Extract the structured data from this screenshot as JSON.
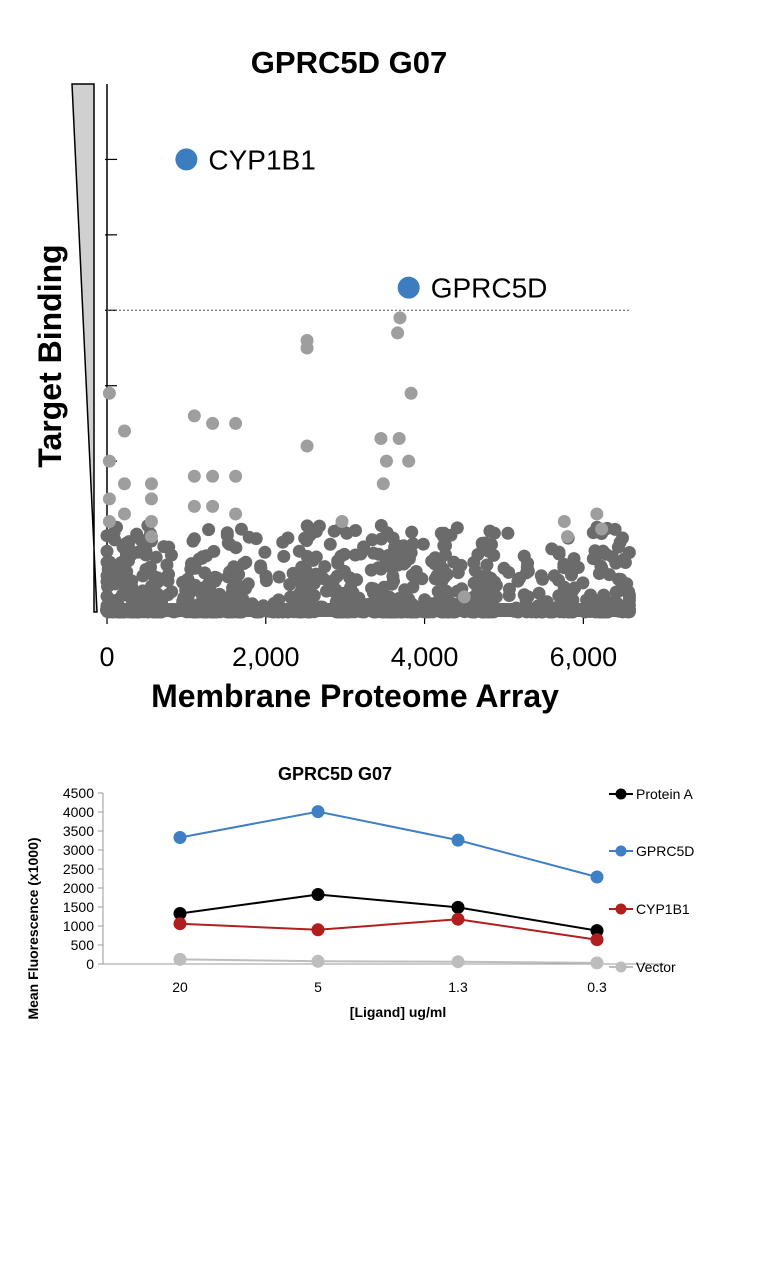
{
  "chart_data": [
    {
      "type": "scatter",
      "title": "GPRC5D G07",
      "xlabel": "Membrane Proteome Array",
      "ylabel": "Target Binding",
      "xlim": [
        0,
        6600
      ],
      "xticks": [
        "0",
        "2,000",
        "4,000",
        "6,000"
      ],
      "xtick_values": [
        0,
        2000,
        4000,
        6000
      ],
      "ylim": [
        0,
        7
      ],
      "y_axis_numeric_labels": false,
      "threshold_line": 4,
      "colors": {
        "background_points": "#9e9e9e",
        "dense_points": "#6b6b6b",
        "highlight": "#3b7dbf"
      },
      "highlights": [
        {
          "name": "CYP1B1",
          "x": 1000,
          "y": 6
        },
        {
          "name": "GPRC5D",
          "x": 3800,
          "y": 4.3
        }
      ],
      "outliers": [
        {
          "x": 30,
          "y": 2.9
        },
        {
          "x": 30,
          "y": 2.0
        },
        {
          "x": 30,
          "y": 1.5
        },
        {
          "x": 30,
          "y": 1.2
        },
        {
          "x": 220,
          "y": 2.4
        },
        {
          "x": 220,
          "y": 1.7
        },
        {
          "x": 220,
          "y": 1.3
        },
        {
          "x": 560,
          "y": 1.7
        },
        {
          "x": 560,
          "y": 1.5
        },
        {
          "x": 560,
          "y": 1.2
        },
        {
          "x": 560,
          "y": 1.0
        },
        {
          "x": 1100,
          "y": 2.6
        },
        {
          "x": 1100,
          "y": 1.8
        },
        {
          "x": 1100,
          "y": 1.4
        },
        {
          "x": 1330,
          "y": 2.5
        },
        {
          "x": 1330,
          "y": 1.8
        },
        {
          "x": 1330,
          "y": 1.4
        },
        {
          "x": 1620,
          "y": 2.5
        },
        {
          "x": 1620,
          "y": 1.8
        },
        {
          "x": 1620,
          "y": 1.3
        },
        {
          "x": 2520,
          "y": 3.6
        },
        {
          "x": 2520,
          "y": 3.5
        },
        {
          "x": 2520,
          "y": 2.2
        },
        {
          "x": 2960,
          "y": 1.2
        },
        {
          "x": 3450,
          "y": 2.3
        },
        {
          "x": 3520,
          "y": 2.0
        },
        {
          "x": 3480,
          "y": 1.7
        },
        {
          "x": 3690,
          "y": 3.9
        },
        {
          "x": 3660,
          "y": 3.7
        },
        {
          "x": 3680,
          "y": 2.3
        },
        {
          "x": 3830,
          "y": 2.9
        },
        {
          "x": 3800,
          "y": 2.0
        },
        {
          "x": 4500,
          "y": 0.2
        },
        {
          "x": 5760,
          "y": 1.2
        },
        {
          "x": 5800,
          "y": 1.0
        },
        {
          "x": 6170,
          "y": 1.3
        },
        {
          "x": 6230,
          "y": 1.1
        }
      ]
    },
    {
      "type": "line",
      "title": "GPRC5D G07",
      "xlabel": "[Ligand] ug/ml",
      "ylabel": "Mean Fluorescence (x1000)",
      "categories": [
        "20",
        "5",
        "1.3",
        "0.3"
      ],
      "ylim": [
        0,
        4500
      ],
      "yticks": [
        0,
        500,
        1000,
        1500,
        2000,
        2500,
        3000,
        3500,
        4000,
        4500
      ],
      "legend_position": "right",
      "series": [
        {
          "name": "Protein A",
          "color": "#000000",
          "values": [
            1330,
            1830,
            1490,
            880
          ]
        },
        {
          "name": "GPRC5D",
          "color": "#3f7fc3",
          "values": [
            3330,
            4010,
            3260,
            2290
          ]
        },
        {
          "name": "CYP1B1",
          "color": "#b01e1e",
          "values": [
            1060,
            900,
            1180,
            640
          ]
        },
        {
          "name": "Vector",
          "color": "#bdbdbd",
          "values": [
            120,
            70,
            60,
            30
          ]
        }
      ]
    }
  ]
}
